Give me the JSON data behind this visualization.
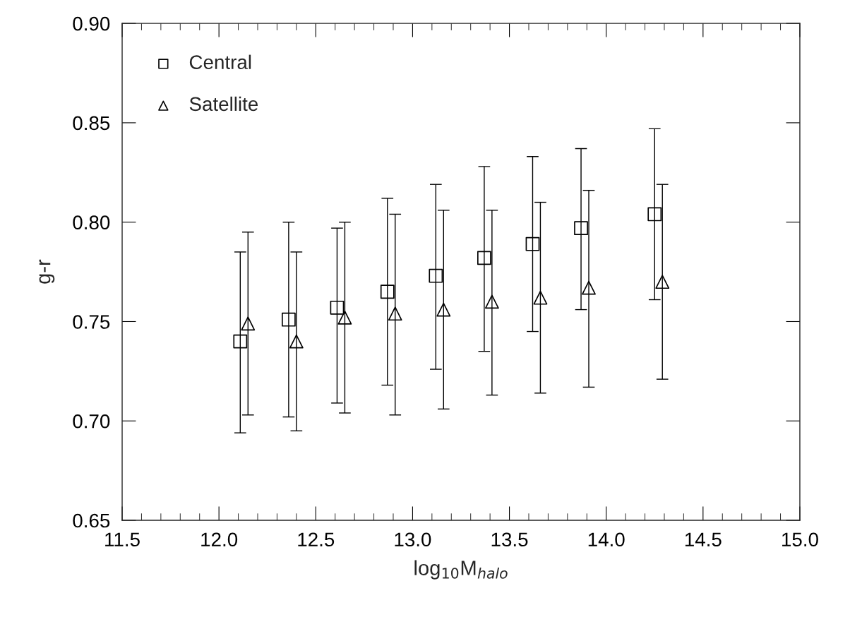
{
  "chart_data": {
    "type": "scatter",
    "xlabel": "log$_{10}$M$_{halo}$",
    "ylabel": "g-r",
    "xlim": [
      11.5,
      15.0
    ],
    "xticks": [
      {
        "value": 11.5,
        "label": "11.5"
      },
      {
        "value": 12.0,
        "label": "12.0"
      },
      {
        "value": 12.5,
        "label": "12.5"
      },
      {
        "value": 13.0,
        "label": "13.0"
      },
      {
        "value": 13.5,
        "label": "13.5"
      },
      {
        "value": 14.0,
        "label": "14.0"
      },
      {
        "value": 14.5,
        "label": "14.5"
      },
      {
        "value": 15.0,
        "label": "15.0"
      }
    ],
    "ylim": [
      0.65,
      0.9
    ],
    "yticks": [
      {
        "value": 0.65,
        "label": "0.65"
      },
      {
        "value": 0.7,
        "label": "0.70"
      },
      {
        "value": 0.75,
        "label": "0.75"
      },
      {
        "value": 0.8,
        "label": "0.80"
      },
      {
        "value": 0.85,
        "label": "0.85"
      },
      {
        "value": 0.9,
        "label": "0.90"
      }
    ],
    "grid": false,
    "legend": "top left",
    "series": [
      {
        "name": "Central",
        "color": "#000000",
        "marker": "square",
        "x": [
          12.11,
          12.36,
          12.61,
          12.87,
          13.12,
          13.37,
          13.62,
          13.87,
          14.25
        ],
        "values": [
          0.74,
          0.751,
          0.757,
          0.765,
          0.773,
          0.782,
          0.789,
          0.797,
          0.804
        ],
        "errors": [
          [
            0.694,
            0.785
          ],
          [
            0.702,
            0.8
          ],
          [
            0.709,
            0.797
          ],
          [
            0.718,
            0.812
          ],
          [
            0.726,
            0.819
          ],
          [
            0.735,
            0.828
          ],
          [
            0.745,
            0.833
          ],
          [
            0.756,
            0.837
          ],
          [
            0.761,
            0.847
          ]
        ]
      },
      {
        "name": "Satellite",
        "color": "#000000",
        "marker": "triangle",
        "x": [
          12.15,
          12.4,
          12.65,
          12.91,
          13.16,
          13.41,
          13.66,
          13.91,
          14.29
        ],
        "values": [
          0.749,
          0.74,
          0.752,
          0.754,
          0.756,
          0.76,
          0.762,
          0.767,
          0.77
        ],
        "errors": [
          [
            0.703,
            0.795
          ],
          [
            0.695,
            0.785
          ],
          [
            0.704,
            0.8
          ],
          [
            0.703,
            0.804
          ],
          [
            0.706,
            0.806
          ],
          [
            0.713,
            0.806
          ],
          [
            0.714,
            0.81
          ],
          [
            0.717,
            0.816
          ],
          [
            0.721,
            0.819
          ]
        ]
      }
    ]
  }
}
